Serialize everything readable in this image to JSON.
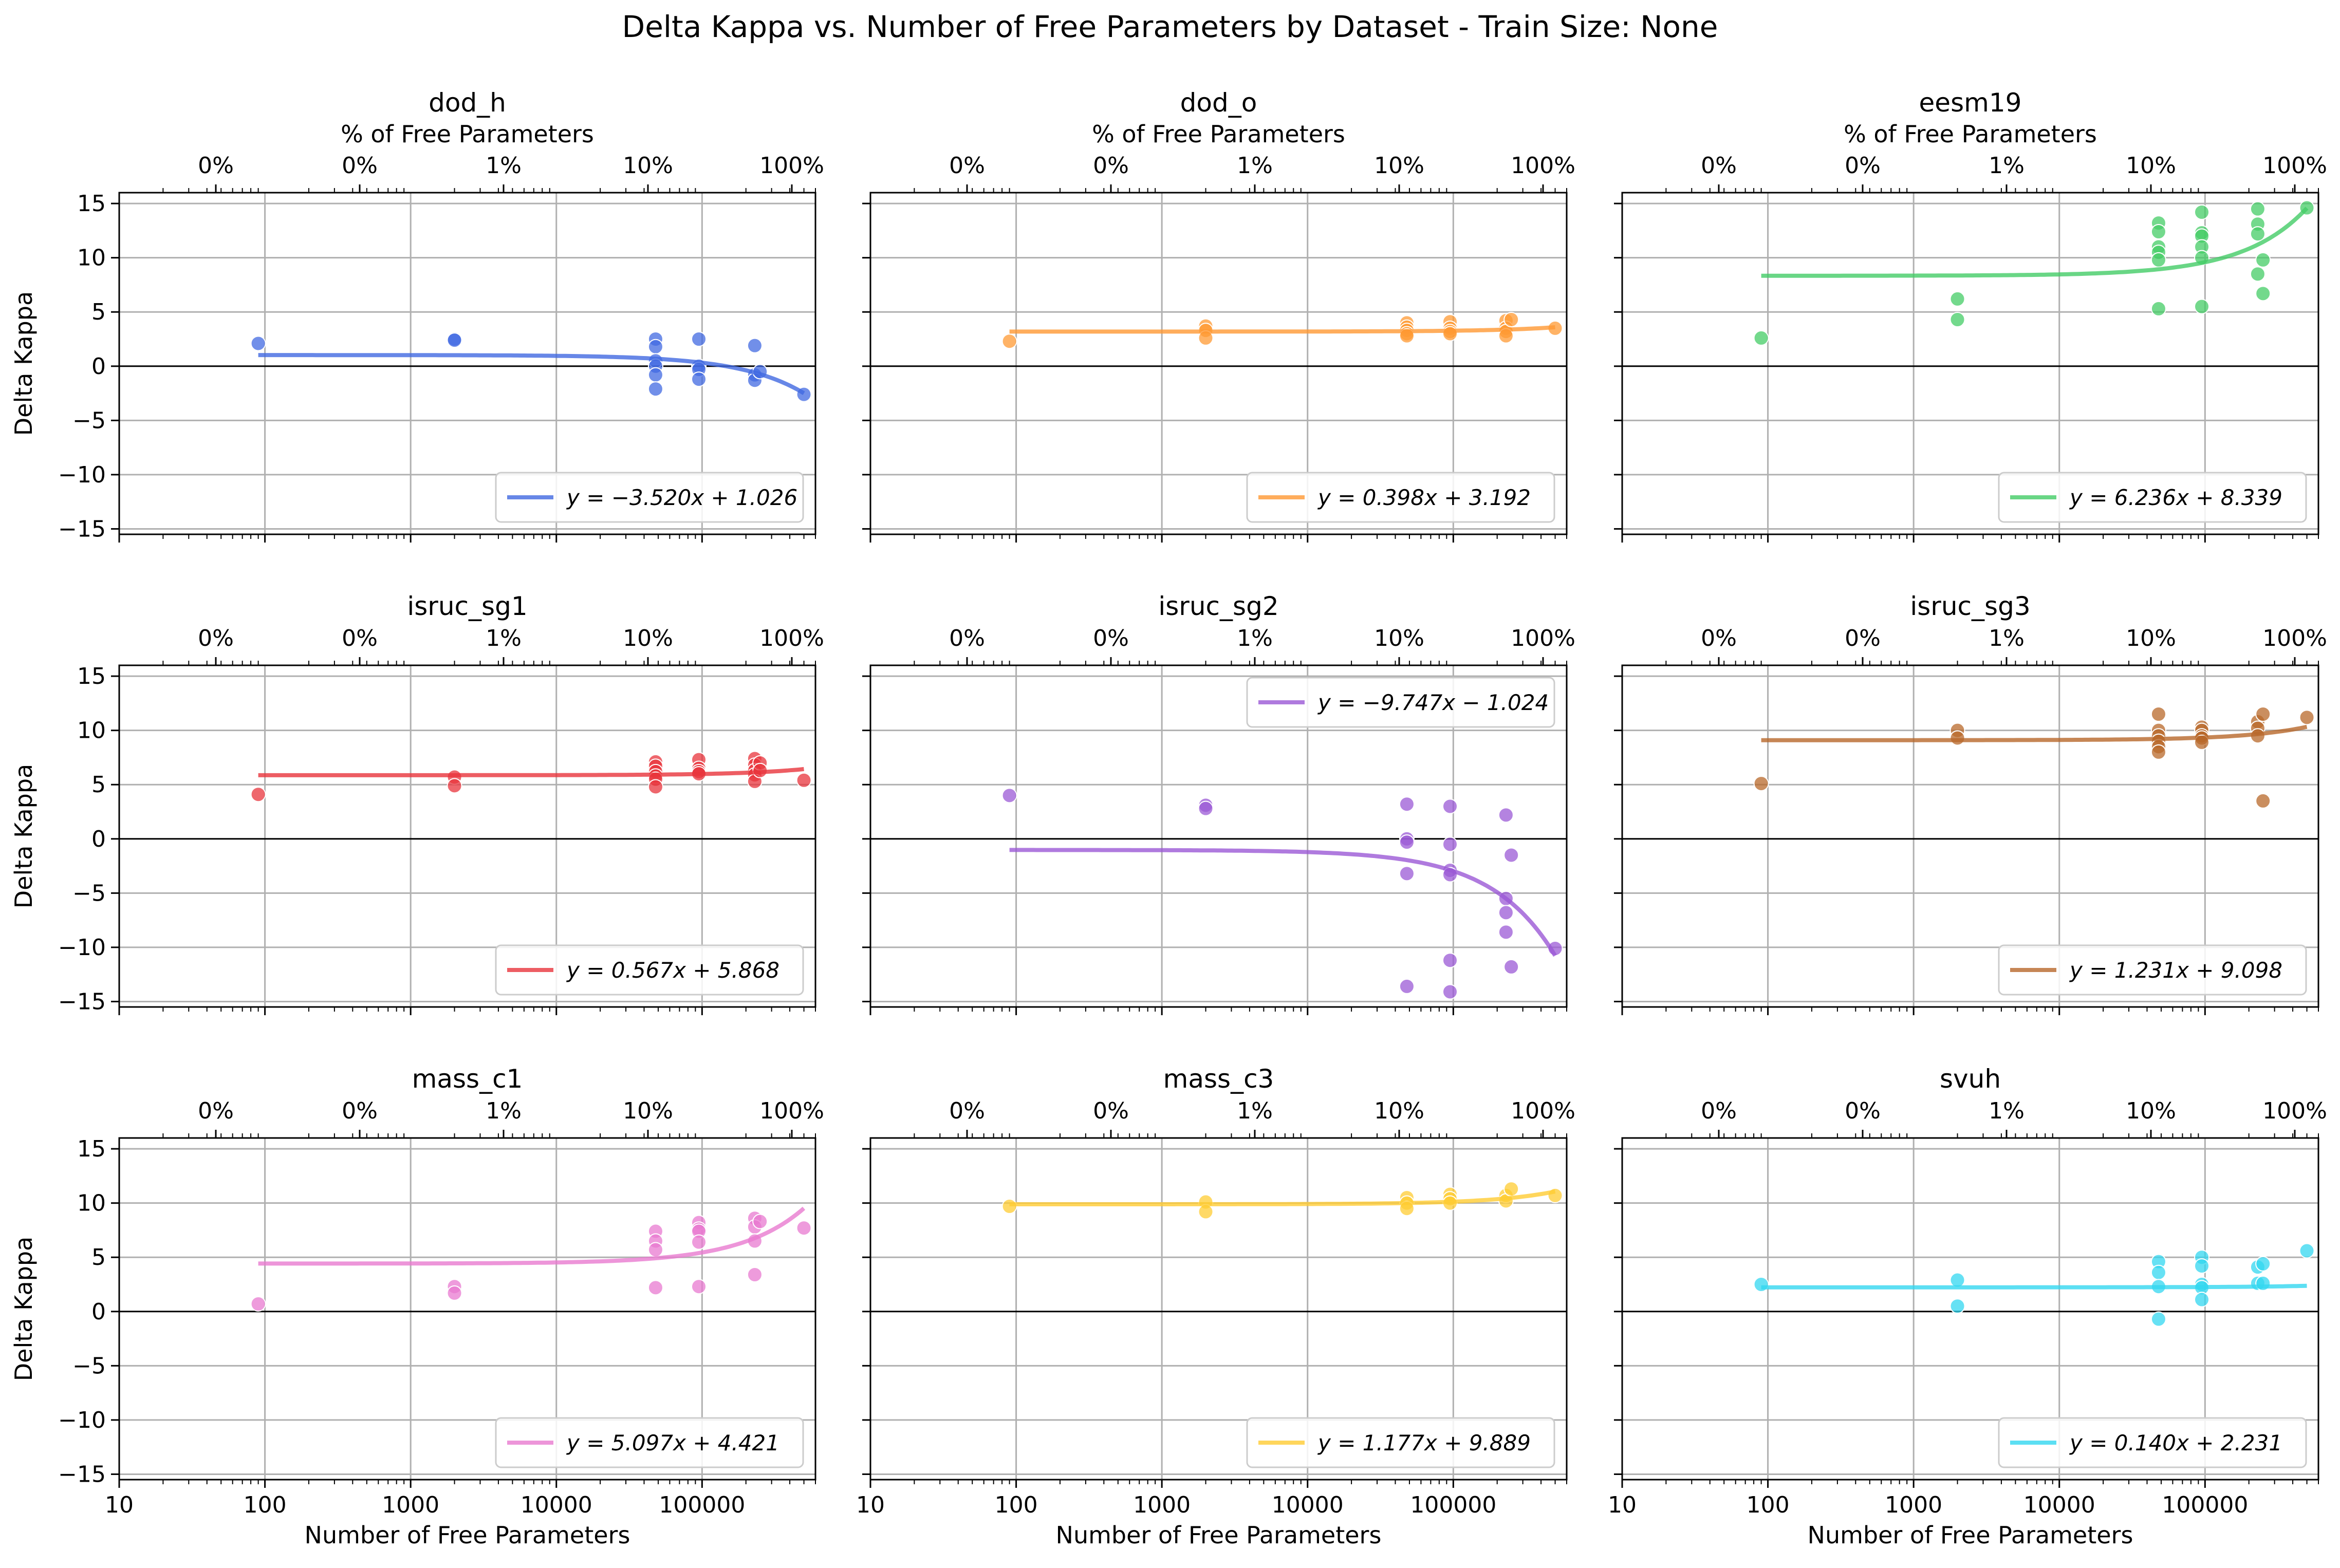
{
  "figure": {
    "title": "Delta Kappa vs. Number of Free Parameters by Dataset - Train Size: None",
    "xlabel": "Number of Free Parameters",
    "ylabel": "Delta Kappa",
    "top_xlabel": "% of Free Parameters",
    "x_tick_labels": [
      "10",
      "100",
      "1000",
      "10000",
      "100000"
    ],
    "top_tick_labels": [
      "0%",
      "0%",
      "1%",
      "10%",
      "100%"
    ],
    "y_tick_labels": [
      "−15",
      "−10",
      "−5",
      "0",
      "5",
      "10",
      "15"
    ]
  },
  "chart_data": [
    {
      "type": "scatter",
      "title": "dod_h",
      "color": "#4169e1",
      "xscale": "log",
      "xlim": [
        10,
        600000
      ],
      "ylim": [
        -15.5,
        16
      ],
      "grid": true,
      "legend_loc": "lower right",
      "legend": "y = −3.520x + 1.026",
      "fit": {
        "slope": -3.52,
        "intercept": 1.026
      },
      "points": [
        [
          90,
          2.1
        ],
        [
          2000,
          2.5
        ],
        [
          2000,
          2.4
        ],
        [
          48000,
          2.5
        ],
        [
          48000,
          1.8
        ],
        [
          48000,
          0.5
        ],
        [
          48000,
          0
        ],
        [
          48000,
          -0.8
        ],
        [
          48000,
          -2.1
        ],
        [
          95000,
          2.5
        ],
        [
          95000,
          0
        ],
        [
          95000,
          -0.3
        ],
        [
          95000,
          -1.2
        ],
        [
          230000,
          1.9
        ],
        [
          230000,
          -0.8
        ],
        [
          230000,
          -1.3
        ],
        [
          250000,
          -0.5
        ],
        [
          500000,
          -2.6
        ]
      ]
    },
    {
      "type": "scatter",
      "title": "dod_o",
      "color": "#ff9933",
      "xscale": "log",
      "xlim": [
        10,
        600000
      ],
      "ylim": [
        -15.5,
        16
      ],
      "grid": true,
      "legend_loc": "lower right",
      "legend": "y = 0.398x + 3.192",
      "fit": {
        "slope": 0.398,
        "intercept": 3.192
      },
      "points": [
        [
          90,
          2.3
        ],
        [
          2000,
          3.7
        ],
        [
          2000,
          3.3
        ],
        [
          2000,
          2.6
        ],
        [
          48000,
          4
        ],
        [
          48000,
          3.6
        ],
        [
          48000,
          3.3
        ],
        [
          48000,
          3
        ],
        [
          48000,
          2.8
        ],
        [
          95000,
          4.1
        ],
        [
          95000,
          3.5
        ],
        [
          95000,
          3.2
        ],
        [
          95000,
          3
        ],
        [
          230000,
          4.2
        ],
        [
          230000,
          3.5
        ],
        [
          230000,
          3.2
        ],
        [
          230000,
          2.8
        ],
        [
          250000,
          4.3
        ],
        [
          500000,
          3.5
        ]
      ]
    },
    {
      "type": "scatter",
      "title": "eesm19",
      "color": "#44cc66",
      "xscale": "log",
      "xlim": [
        10,
        600000
      ],
      "ylim": [
        -15.5,
        16
      ],
      "grid": true,
      "legend_loc": "lower right",
      "legend": "y = 6.236x + 8.339",
      "fit": {
        "slope": 6.236,
        "intercept": 8.339
      },
      "points": [
        [
          90,
          2.6
        ],
        [
          2000,
          6.2
        ],
        [
          2000,
          4.3
        ],
        [
          48000,
          13.2
        ],
        [
          48000,
          12.4
        ],
        [
          48000,
          11
        ],
        [
          48000,
          10.5
        ],
        [
          48000,
          9.8
        ],
        [
          48000,
          5.3
        ],
        [
          95000,
          14.2
        ],
        [
          95000,
          12.3
        ],
        [
          95000,
          12
        ],
        [
          95000,
          11
        ],
        [
          95000,
          10
        ],
        [
          95000,
          5.5
        ],
        [
          230000,
          14.5
        ],
        [
          230000,
          13.1
        ],
        [
          230000,
          12.2
        ],
        [
          230000,
          8.5
        ],
        [
          250000,
          9.8
        ],
        [
          250000,
          6.7
        ],
        [
          500000,
          14.6
        ]
      ]
    },
    {
      "type": "scatter",
      "title": "isruc_sg1",
      "color": "#e8343c",
      "xscale": "log",
      "xlim": [
        10,
        600000
      ],
      "ylim": [
        -15.5,
        16
      ],
      "grid": true,
      "legend_loc": "lower right",
      "legend": "y = 0.567x + 5.868",
      "fit": {
        "slope": 0.567,
        "intercept": 5.868
      },
      "points": [
        [
          90,
          4.1
        ],
        [
          2000,
          5.7
        ],
        [
          2000,
          4.9
        ],
        [
          48000,
          7.1
        ],
        [
          48000,
          6.7
        ],
        [
          48000,
          6.2
        ],
        [
          48000,
          5.8
        ],
        [
          48000,
          5.5
        ],
        [
          48000,
          4.8
        ],
        [
          95000,
          7.3
        ],
        [
          95000,
          6.5
        ],
        [
          95000,
          6.2
        ],
        [
          95000,
          6
        ],
        [
          230000,
          7.4
        ],
        [
          230000,
          6.8
        ],
        [
          230000,
          6.3
        ],
        [
          230000,
          5.9
        ],
        [
          230000,
          5.3
        ],
        [
          250000,
          7
        ],
        [
          250000,
          6.3
        ],
        [
          500000,
          5.4
        ]
      ]
    },
    {
      "type": "scatter",
      "title": "isruc_sg2",
      "color": "#9b59d6",
      "xscale": "log",
      "xlim": [
        10,
        600000
      ],
      "ylim": [
        -15.5,
        16
      ],
      "grid": true,
      "legend_loc": "upper right",
      "legend": "y = −9.747x − 1.024",
      "fit": {
        "slope": -9.747,
        "intercept": -1.024
      },
      "points": [
        [
          90,
          4
        ],
        [
          2000,
          3.1
        ],
        [
          2000,
          2.8
        ],
        [
          48000,
          3.2
        ],
        [
          48000,
          0
        ],
        [
          48000,
          -0.3
        ],
        [
          48000,
          -3.2
        ],
        [
          48000,
          -13.6
        ],
        [
          95000,
          3
        ],
        [
          95000,
          -0.5
        ],
        [
          95000,
          -2.9
        ],
        [
          95000,
          -3.3
        ],
        [
          95000,
          -11.2
        ],
        [
          95000,
          -14.1
        ],
        [
          230000,
          2.2
        ],
        [
          230000,
          -5.5
        ],
        [
          230000,
          -6.8
        ],
        [
          230000,
          -8.6
        ],
        [
          250000,
          -1.5
        ],
        [
          250000,
          -11.8
        ],
        [
          500000,
          -10.1
        ]
      ]
    },
    {
      "type": "scatter",
      "title": "isruc_sg3",
      "color": "#b8682a",
      "xscale": "log",
      "xlim": [
        10,
        600000
      ],
      "ylim": [
        -15.5,
        16
      ],
      "grid": true,
      "legend_loc": "lower right",
      "legend": "y = 1.231x + 9.098",
      "fit": {
        "slope": 1.231,
        "intercept": 9.098
      },
      "points": [
        [
          90,
          5.1
        ],
        [
          2000,
          10
        ],
        [
          2000,
          9.3
        ],
        [
          48000,
          11.5
        ],
        [
          48000,
          10
        ],
        [
          48000,
          9.5
        ],
        [
          48000,
          9
        ],
        [
          48000,
          8.5
        ],
        [
          48000,
          8
        ],
        [
          95000,
          10.3
        ],
        [
          95000,
          10
        ],
        [
          95000,
          9.5
        ],
        [
          95000,
          9.3
        ],
        [
          95000,
          8.9
        ],
        [
          230000,
          10.8
        ],
        [
          230000,
          10.2
        ],
        [
          230000,
          9.5
        ],
        [
          250000,
          11.5
        ],
        [
          250000,
          3.5
        ],
        [
          500000,
          11.2
        ]
      ]
    },
    {
      "type": "scatter",
      "title": "mass_c1",
      "color": "#e87ad0",
      "xscale": "log",
      "xlim": [
        10,
        600000
      ],
      "ylim": [
        -15.5,
        16
      ],
      "grid": true,
      "legend_loc": "lower right",
      "legend": "y = 5.097x + 4.421",
      "fit": {
        "slope": 5.097,
        "intercept": 4.421
      },
      "points": [
        [
          90,
          0.7
        ],
        [
          2000,
          2.3
        ],
        [
          2000,
          1.7
        ],
        [
          48000,
          7.4
        ],
        [
          48000,
          6.5
        ],
        [
          48000,
          5.7
        ],
        [
          48000,
          2.2
        ],
        [
          95000,
          8.2
        ],
        [
          95000,
          7.6
        ],
        [
          95000,
          7.4
        ],
        [
          95000,
          6.4
        ],
        [
          95000,
          2.3
        ],
        [
          230000,
          8.6
        ],
        [
          230000,
          7.8
        ],
        [
          230000,
          6.5
        ],
        [
          230000,
          3.4
        ],
        [
          250000,
          8.3
        ],
        [
          500000,
          7.7
        ]
      ]
    },
    {
      "type": "scatter",
      "title": "mass_c3",
      "color": "#ffcc33",
      "xscale": "log",
      "xlim": [
        10,
        600000
      ],
      "ylim": [
        -15.5,
        16
      ],
      "grid": true,
      "legend_loc": "lower right",
      "legend": "y = 1.177x + 9.889",
      "fit": {
        "slope": 1.177,
        "intercept": 9.889
      },
      "points": [
        [
          90,
          9.7
        ],
        [
          2000,
          10.1
        ],
        [
          2000,
          9.2
        ],
        [
          48000,
          10.5
        ],
        [
          48000,
          10
        ],
        [
          48000,
          9.5
        ],
        [
          95000,
          10.8
        ],
        [
          95000,
          10.4
        ],
        [
          95000,
          10
        ],
        [
          230000,
          10.7
        ],
        [
          230000,
          10.2
        ],
        [
          250000,
          11.3
        ],
        [
          500000,
          10.7
        ]
      ]
    },
    {
      "type": "scatter",
      "title": "svuh",
      "color": "#33d7f0",
      "xscale": "log",
      "xlim": [
        10,
        600000
      ],
      "ylim": [
        -15.5,
        16
      ],
      "grid": true,
      "legend_loc": "lower right",
      "legend": "y = 0.140x + 2.231",
      "fit": {
        "slope": 0.14,
        "intercept": 2.231
      },
      "points": [
        [
          90,
          2.5
        ],
        [
          2000,
          2.9
        ],
        [
          2000,
          0.5
        ],
        [
          48000,
          4.6
        ],
        [
          48000,
          3.6
        ],
        [
          48000,
          2.3
        ],
        [
          48000,
          -0.7
        ],
        [
          95000,
          5
        ],
        [
          95000,
          4.2
        ],
        [
          95000,
          2.5
        ],
        [
          95000,
          2.2
        ],
        [
          95000,
          1.1
        ],
        [
          230000,
          4.1
        ],
        [
          230000,
          2.6
        ],
        [
          250000,
          4.4
        ],
        [
          250000,
          2.6
        ],
        [
          500000,
          5.6
        ]
      ]
    }
  ]
}
